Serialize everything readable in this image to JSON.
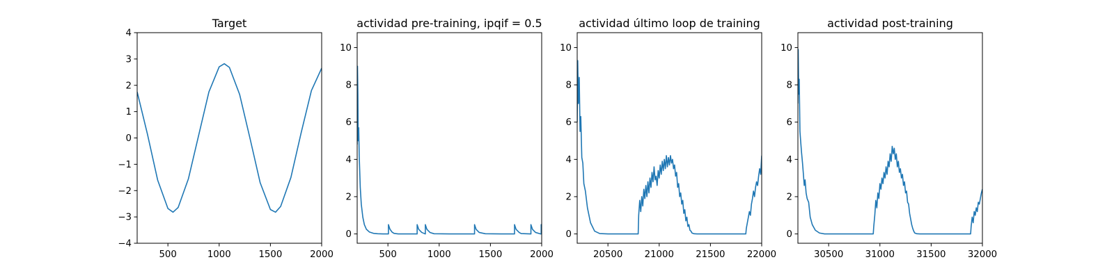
{
  "figure": {
    "line_color": "#1f77b4"
  },
  "chart_data": [
    {
      "type": "line",
      "title": "Target",
      "xlabel": "",
      "ylabel": "",
      "xlim": [
        200,
        2000
      ],
      "ylim": [
        -4,
        4
      ],
      "xticks": [
        500,
        1000,
        1500,
        2000
      ],
      "yticks": [
        -4,
        -3,
        -2,
        -1,
        0,
        1,
        2,
        3,
        4
      ],
      "grid": false,
      "x": [
        200,
        300,
        400,
        500,
        550,
        600,
        700,
        800,
        900,
        1000,
        1050,
        1100,
        1200,
        1300,
        1400,
        1500,
        1550,
        1600,
        1700,
        1800,
        1900,
        2000
      ],
      "y": [
        1.75,
        0.15,
        -1.6,
        -2.68,
        -2.82,
        -2.64,
        -1.55,
        0.1,
        1.75,
        2.7,
        2.82,
        2.68,
        1.65,
        0.0,
        -1.7,
        -2.72,
        -2.82,
        -2.6,
        -1.5,
        0.2,
        1.8,
        2.65
      ]
    },
    {
      "type": "line",
      "title": "actividad pre-training, ipqif = 0.5",
      "xlabel": "",
      "ylabel": "",
      "xlim": [
        200,
        2000
      ],
      "ylim": [
        -0.5,
        10.8
      ],
      "xticks": [
        500,
        1000,
        1500,
        2000
      ],
      "yticks": [
        0,
        2,
        4,
        6,
        8,
        10
      ],
      "grid": false,
      "x": [
        200,
        203,
        207,
        210,
        215,
        220,
        230,
        240,
        255,
        270,
        290,
        320,
        360,
        400,
        450,
        500,
        505,
        505,
        520,
        540,
        560,
        600,
        700,
        780,
        785,
        785,
        800,
        830,
        860,
        865,
        865,
        880,
        910,
        950,
        1100,
        1300,
        1340,
        1345,
        1345,
        1360,
        1390,
        1450,
        1600,
        1730,
        1735,
        1735,
        1750,
        1780,
        1800,
        1890,
        1895,
        1895,
        1910,
        1940,
        1990,
        1995,
        1995,
        2000
      ],
      "y": [
        4.8,
        9.0,
        7.5,
        5.0,
        5.7,
        4.2,
        2.5,
        1.6,
        0.9,
        0.5,
        0.25,
        0.1,
        0.03,
        0.01,
        0.0,
        0.0,
        0.0,
        0.5,
        0.25,
        0.1,
        0.03,
        0.0,
        0.0,
        0.0,
        0.0,
        0.5,
        0.25,
        0.08,
        0.01,
        0.0,
        0.5,
        0.25,
        0.08,
        0.01,
        0.0,
        0.0,
        0.0,
        0.0,
        0.5,
        0.25,
        0.08,
        0.01,
        0.0,
        0.0,
        0.0,
        0.5,
        0.25,
        0.08,
        0.02,
        0.0,
        0.0,
        0.5,
        0.25,
        0.08,
        0.0,
        0.0,
        0.5,
        0.4
      ]
    },
    {
      "type": "line",
      "title": "actividad último loop de training",
      "xlabel": "",
      "ylabel": "",
      "xlim": [
        20200,
        22000
      ],
      "ylim": [
        -0.5,
        10.8
      ],
      "xticks": [
        20500,
        21000,
        21500,
        22000
      ],
      "yticks": [
        0,
        2,
        4,
        6,
        8,
        10
      ],
      "grid": false,
      "x": [
        20200,
        20205,
        20212,
        20220,
        20228,
        20235,
        20245,
        20255,
        20265,
        20280,
        20300,
        20330,
        20370,
        20420,
        20500,
        20600,
        20700,
        20790,
        20795,
        20800,
        20810,
        20820,
        20830,
        20840,
        20850,
        20860,
        20870,
        20880,
        20890,
        20900,
        20910,
        20920,
        20930,
        20940,
        20950,
        20960,
        20970,
        20980,
        20990,
        21000,
        21010,
        21020,
        21030,
        21040,
        21050,
        21060,
        21070,
        21080,
        21090,
        21100,
        21110,
        21120,
        21130,
        21140,
        21150,
        21160,
        21170,
        21180,
        21190,
        21200,
        21210,
        21220,
        21230,
        21240,
        21250,
        21260,
        21270,
        21280,
        21290,
        21300,
        21310,
        21320,
        21340,
        21370,
        21420,
        21500,
        21600,
        21700,
        21800,
        21840,
        21845,
        21850,
        21860,
        21870,
        21880,
        21890,
        21900,
        21910,
        21920,
        21930,
        21940,
        21950,
        21960,
        21970,
        21980,
        21990,
        22000
      ],
      "y": [
        6.0,
        9.3,
        7.0,
        8.4,
        5.5,
        6.3,
        4.1,
        3.8,
        2.7,
        2.3,
        1.4,
        0.6,
        0.15,
        0.02,
        0.0,
        0.0,
        0.0,
        0.0,
        0.0,
        1.0,
        1.8,
        1.2,
        2.0,
        1.5,
        2.4,
        1.9,
        2.6,
        2.0,
        2.8,
        2.2,
        3.0,
        2.5,
        3.3,
        2.8,
        3.6,
        2.9,
        3.1,
        2.6,
        3.4,
        3.0,
        3.7,
        3.2,
        3.9,
        3.4,
        4.0,
        3.5,
        4.2,
        3.6,
        4.1,
        3.7,
        4.2,
        3.8,
        4.0,
        3.5,
        3.7,
        3.1,
        3.3,
        2.5,
        2.7,
        2.0,
        2.2,
        1.6,
        1.8,
        1.1,
        1.3,
        0.7,
        0.9,
        0.4,
        0.5,
        0.2,
        0.15,
        0.05,
        0.01,
        0.0,
        0.0,
        0.0,
        0.0,
        0.0,
        0.0,
        0.0,
        0.0,
        0.3,
        0.6,
        0.9,
        1.2,
        1.0,
        1.6,
        1.9,
        2.3,
        2.0,
        2.5,
        2.8,
        2.6,
        3.1,
        3.5,
        3.2,
        4.2
      ]
    },
    {
      "type": "line",
      "title": "actividad post-training",
      "xlabel": "",
      "ylabel": "",
      "xlim": [
        30200,
        32000
      ],
      "ylim": [
        -0.5,
        10.8
      ],
      "xticks": [
        30500,
        31000,
        31500,
        32000
      ],
      "yticks": [
        0,
        2,
        4,
        6,
        8,
        10
      ],
      "grid": false,
      "x": [
        30200,
        30203,
        30208,
        30213,
        30220,
        30228,
        30235,
        30245,
        30255,
        30262,
        30270,
        30280,
        30290,
        30305,
        30320,
        30340,
        30370,
        30410,
        30460,
        30550,
        30700,
        30850,
        30930,
        30935,
        30940,
        30950,
        30960,
        30970,
        30980,
        30990,
        31000,
        31010,
        31020,
        31030,
        31040,
        31050,
        31060,
        31070,
        31080,
        31090,
        31100,
        31110,
        31120,
        31130,
        31140,
        31150,
        31160,
        31170,
        31180,
        31190,
        31200,
        31210,
        31220,
        31230,
        31240,
        31250,
        31260,
        31270,
        31280,
        31290,
        31300,
        31310,
        31320,
        31330,
        31340,
        31360,
        31390,
        31450,
        31550,
        31700,
        31800,
        31880,
        31885,
        31890,
        31900,
        31910,
        31920,
        31930,
        31940,
        31950,
        31960,
        31970,
        31980,
        31990,
        32000
      ],
      "y": [
        7.0,
        9.9,
        7.5,
        8.3,
        5.5,
        4.9,
        4.4,
        3.8,
        3.1,
        2.6,
        2.9,
        2.2,
        1.9,
        1.7,
        0.9,
        0.5,
        0.2,
        0.05,
        0.0,
        0.0,
        0.0,
        0.0,
        0.0,
        0.0,
        0.4,
        1.0,
        1.8,
        1.4,
        2.2,
        1.9,
        2.7,
        2.4,
        3.0,
        2.7,
        3.3,
        3.0,
        3.6,
        3.2,
        3.9,
        3.6,
        4.3,
        3.9,
        4.7,
        4.3,
        4.6,
        4.0,
        4.3,
        3.6,
        3.9,
        3.3,
        3.5,
        3.0,
        3.2,
        2.6,
        2.8,
        2.2,
        2.3,
        1.7,
        1.6,
        1.1,
        0.8,
        0.5,
        0.3,
        0.15,
        0.05,
        0.01,
        0.0,
        0.0,
        0.0,
        0.0,
        0.0,
        0.0,
        0.0,
        0.4,
        0.9,
        0.6,
        1.2,
        1.0,
        1.4,
        1.2,
        1.7,
        1.6,
        1.9,
        2.2,
        2.4
      ]
    }
  ]
}
